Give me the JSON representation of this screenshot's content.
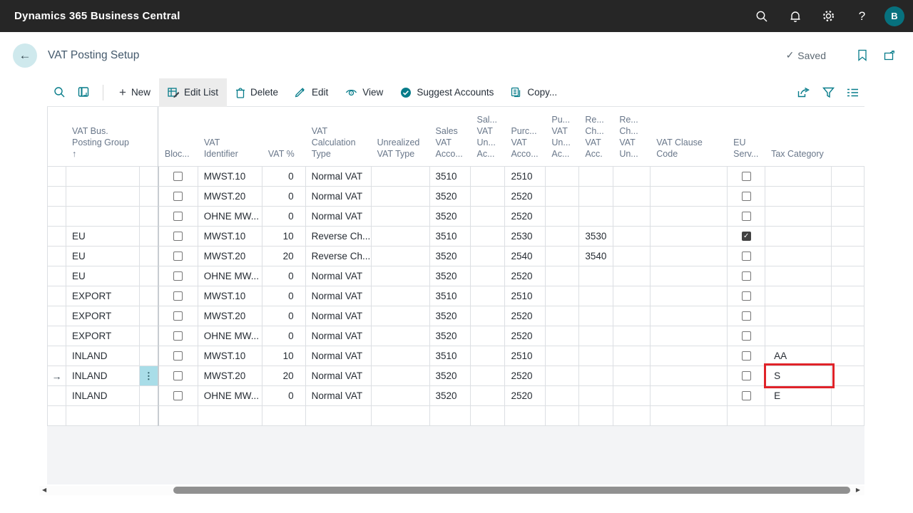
{
  "topbar": {
    "title": "Dynamics 365 Business Central",
    "icons": [
      "search-icon",
      "notifications-icon",
      "settings-icon",
      "help-icon"
    ],
    "avatar_initial": "B"
  },
  "header": {
    "title": "VAT Posting Setup",
    "saved_label": "Saved",
    "icons": [
      "bookmark-icon",
      "open-in-new-window-icon"
    ]
  },
  "toolbar": {
    "left_icons": [
      "search-icon",
      "analysis-icon"
    ],
    "buttons": [
      {
        "label": "New",
        "icon": "plus-icon",
        "active": false
      },
      {
        "label": "Edit List",
        "icon": "edit-list-icon",
        "active": true
      },
      {
        "label": "Delete",
        "icon": "trash-icon",
        "active": false
      },
      {
        "label": "Edit",
        "icon": "pencil-icon",
        "active": false
      },
      {
        "label": "View",
        "icon": "eye-icon",
        "active": false
      },
      {
        "label": "Suggest Accounts",
        "icon": "check-badge-icon",
        "active": false
      },
      {
        "label": "Copy...",
        "icon": "copy-icon",
        "active": false
      }
    ],
    "right_icons": [
      "share-icon",
      "filter-icon",
      "list-options-icon"
    ]
  },
  "grid": {
    "columns": [
      {
        "key": "sel",
        "label": ""
      },
      {
        "key": "group",
        "label": "VAT Bus.\nPosting Group\n↑"
      },
      {
        "key": "menu",
        "label": ""
      },
      {
        "key": "blocked",
        "label": "Bloc..."
      },
      {
        "key": "identifier",
        "label": "VAT\nIdentifier"
      },
      {
        "key": "vat_pct",
        "label": "VAT %"
      },
      {
        "key": "calc",
        "label": "VAT\nCalculation\nType"
      },
      {
        "key": "unrealized",
        "label": "Unrealized\nVAT Type"
      },
      {
        "key": "sales_acc",
        "label": "Sales\nVAT\nAcco..."
      },
      {
        "key": "sales_unreal",
        "label": "Sal...\nVAT\nUn...\nAc..."
      },
      {
        "key": "purch_acc",
        "label": "Purc...\nVAT\nAcco..."
      },
      {
        "key": "purch_unreal",
        "label": "Pu...\nVAT\nUn...\nAc..."
      },
      {
        "key": "rev_acc",
        "label": "Re...\nCh...\nVAT\nAcc."
      },
      {
        "key": "rev_unreal",
        "label": "Re...\nCh...\nVAT\nUn..."
      },
      {
        "key": "clause",
        "label": "VAT Clause\nCode"
      },
      {
        "key": "eu_service",
        "label": "EU\nServ..."
      },
      {
        "key": "tax_cat",
        "label": "Tax Category"
      },
      {
        "key": "pad",
        "label": ""
      }
    ],
    "rows": [
      {
        "group": "",
        "blocked": false,
        "identifier": "MWST.10",
        "vat_pct": "0",
        "calc": "Normal VAT",
        "unrealized": "",
        "sales_acc": "3510",
        "sales_unreal": "",
        "purch_acc": "2510",
        "purch_unreal": "",
        "rev_acc": "",
        "rev_unreal": "",
        "clause": "",
        "eu_service": false,
        "tax_cat": ""
      },
      {
        "group": "",
        "blocked": false,
        "identifier": "MWST.20",
        "vat_pct": "0",
        "calc": "Normal VAT",
        "unrealized": "",
        "sales_acc": "3520",
        "sales_unreal": "",
        "purch_acc": "2520",
        "purch_unreal": "",
        "rev_acc": "",
        "rev_unreal": "",
        "clause": "",
        "eu_service": false,
        "tax_cat": ""
      },
      {
        "group": "",
        "blocked": false,
        "identifier": "OHNE MW...",
        "vat_pct": "0",
        "calc": "Normal VAT",
        "unrealized": "",
        "sales_acc": "3520",
        "sales_unreal": "",
        "purch_acc": "2520",
        "purch_unreal": "",
        "rev_acc": "",
        "rev_unreal": "",
        "clause": "",
        "eu_service": false,
        "tax_cat": ""
      },
      {
        "group": "EU",
        "blocked": false,
        "identifier": "MWST.10",
        "vat_pct": "10",
        "calc": "Reverse Ch...",
        "unrealized": "",
        "sales_acc": "3510",
        "sales_unreal": "",
        "purch_acc": "2530",
        "purch_unreal": "",
        "rev_acc": "3530",
        "rev_unreal": "",
        "clause": "",
        "eu_service": true,
        "tax_cat": ""
      },
      {
        "group": "EU",
        "blocked": false,
        "identifier": "MWST.20",
        "vat_pct": "20",
        "calc": "Reverse Ch...",
        "unrealized": "",
        "sales_acc": "3520",
        "sales_unreal": "",
        "purch_acc": "2540",
        "purch_unreal": "",
        "rev_acc": "3540",
        "rev_unreal": "",
        "clause": "",
        "eu_service": false,
        "tax_cat": ""
      },
      {
        "group": "EU",
        "blocked": false,
        "identifier": "OHNE MW...",
        "vat_pct": "0",
        "calc": "Normal VAT",
        "unrealized": "",
        "sales_acc": "3520",
        "sales_unreal": "",
        "purch_acc": "2520",
        "purch_unreal": "",
        "rev_acc": "",
        "rev_unreal": "",
        "clause": "",
        "eu_service": false,
        "tax_cat": ""
      },
      {
        "group": "EXPORT",
        "blocked": false,
        "identifier": "MWST.10",
        "vat_pct": "0",
        "calc": "Normal VAT",
        "unrealized": "",
        "sales_acc": "3510",
        "sales_unreal": "",
        "purch_acc": "2510",
        "purch_unreal": "",
        "rev_acc": "",
        "rev_unreal": "",
        "clause": "",
        "eu_service": false,
        "tax_cat": ""
      },
      {
        "group": "EXPORT",
        "blocked": false,
        "identifier": "MWST.20",
        "vat_pct": "0",
        "calc": "Normal VAT",
        "unrealized": "",
        "sales_acc": "3520",
        "sales_unreal": "",
        "purch_acc": "2520",
        "purch_unreal": "",
        "rev_acc": "",
        "rev_unreal": "",
        "clause": "",
        "eu_service": false,
        "tax_cat": ""
      },
      {
        "group": "EXPORT",
        "blocked": false,
        "identifier": "OHNE MW...",
        "vat_pct": "0",
        "calc": "Normal VAT",
        "unrealized": "",
        "sales_acc": "3520",
        "sales_unreal": "",
        "purch_acc": "2520",
        "purch_unreal": "",
        "rev_acc": "",
        "rev_unreal": "",
        "clause": "",
        "eu_service": false,
        "tax_cat": ""
      },
      {
        "group": "INLAND",
        "blocked": false,
        "identifier": "MWST.10",
        "vat_pct": "10",
        "calc": "Normal VAT",
        "unrealized": "",
        "sales_acc": "3510",
        "sales_unreal": "",
        "purch_acc": "2510",
        "purch_unreal": "",
        "rev_acc": "",
        "rev_unreal": "",
        "clause": "",
        "eu_service": false,
        "tax_cat": "AA"
      },
      {
        "group": "INLAND",
        "blocked": false,
        "identifier": "MWST.20",
        "vat_pct": "20",
        "calc": "Normal VAT",
        "unrealized": "",
        "sales_acc": "3520",
        "sales_unreal": "",
        "purch_acc": "2520",
        "purch_unreal": "",
        "rev_acc": "",
        "rev_unreal": "",
        "clause": "",
        "eu_service": false,
        "tax_cat": "S",
        "active": true,
        "tax_highlighted": true
      },
      {
        "group": "INLAND",
        "blocked": false,
        "identifier": "OHNE MW...",
        "vat_pct": "0",
        "calc": "Normal VAT",
        "unrealized": "",
        "sales_acc": "3520",
        "sales_unreal": "",
        "purch_acc": "2520",
        "purch_unreal": "",
        "rev_acc": "",
        "rev_unreal": "",
        "clause": "",
        "eu_service": false,
        "tax_cat": "E"
      },
      {
        "empty": true
      }
    ],
    "active_row_menu_glyph": "⋮",
    "active_row_arrow": "→"
  },
  "colors": {
    "topbar_bg": "#262626",
    "accent_teal": "#077c8a",
    "avatar_bg": "#07717e",
    "active_menu_cell_bg": "#a9dde8",
    "highlight_red": "#e02329",
    "grid_line": "#dcdfe3"
  }
}
